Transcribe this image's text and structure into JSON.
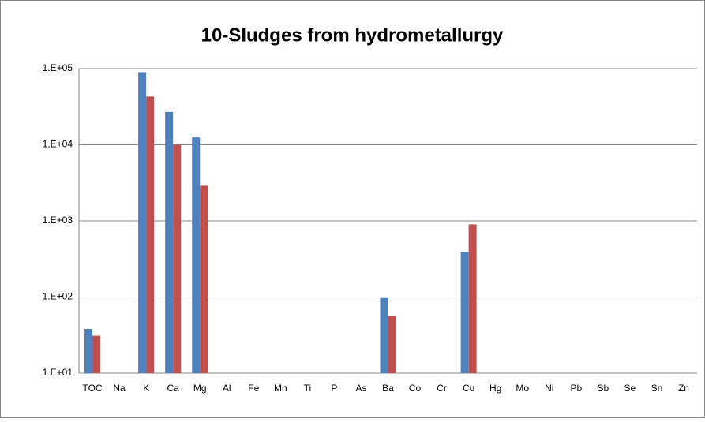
{
  "chart_data": {
    "type": "bar",
    "title": "10-Sludges from hydrometallurgy",
    "categories": [
      "TOC",
      "Na",
      "K",
      "Ca",
      "Mg",
      "Al",
      "Fe",
      "Mn",
      "Ti",
      "P",
      "As",
      "Ba",
      "Co",
      "Cr",
      "Cu",
      "Hg",
      "Mo",
      "Ni",
      "Pb",
      "Sb",
      "Se",
      "Sn",
      "Zn"
    ],
    "series": [
      {
        "color": "#4f81bd",
        "values": [
          38,
          null,
          90000,
          27000,
          12500,
          null,
          null,
          null,
          null,
          null,
          null,
          97,
          null,
          null,
          390,
          null,
          null,
          null,
          null,
          null,
          null,
          null,
          null
        ]
      },
      {
        "color": "#c0504d",
        "values": [
          31,
          null,
          43000,
          10000,
          2900,
          null,
          null,
          null,
          null,
          null,
          null,
          57,
          null,
          null,
          900,
          null,
          null,
          null,
          null,
          null,
          null,
          null,
          null
        ]
      }
    ],
    "ylim": [
      10,
      100000
    ],
    "log_y": true,
    "yticks": [
      {
        "value": 10,
        "label": "1.E+01"
      },
      {
        "value": 100,
        "label": "1.E+02"
      },
      {
        "value": 1000,
        "label": "1.E+03"
      },
      {
        "value": 10000,
        "label": "1.E+04"
      },
      {
        "value": 100000,
        "label": "1.E+05"
      }
    ],
    "grid": true
  }
}
